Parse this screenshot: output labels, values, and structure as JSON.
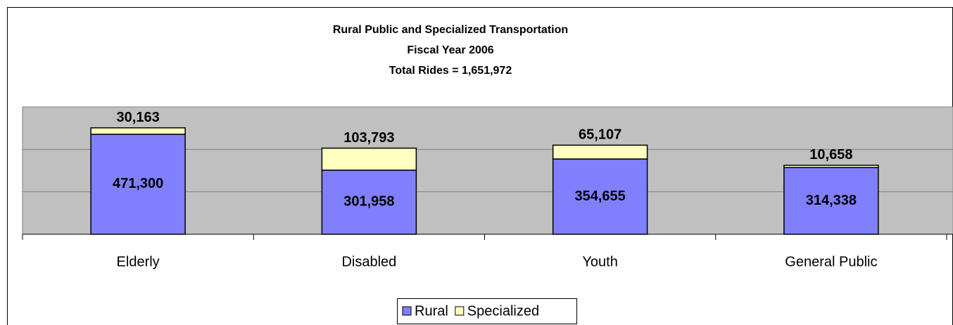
{
  "chart_data": {
    "type": "stacked_bar",
    "title": "Rural Public and Specialized Transportation",
    "subtitle": "Fiscal Year 2006",
    "note": "Total Rides = 1,651,972",
    "categories": [
      "Elderly",
      "Disabled",
      "Youth",
      "General Public"
    ],
    "series": [
      {
        "name": "Rural",
        "color": "#8080ff",
        "values": [
          471300,
          301958,
          354655,
          314338
        ],
        "value_labels": [
          "471,300",
          "301,958",
          "354,655",
          "314,338"
        ]
      },
      {
        "name": "Specialized",
        "color": "#ffffc0",
        "values": [
          30163,
          103793,
          65107,
          10658
        ],
        "value_labels": [
          "30,163",
          "103,793",
          "65,107",
          "10,658"
        ]
      }
    ],
    "ylim": [
      0,
      600000
    ],
    "yticks": [
      0,
      200000,
      400000,
      600000
    ],
    "grid": true,
    "legend": "bottom"
  }
}
